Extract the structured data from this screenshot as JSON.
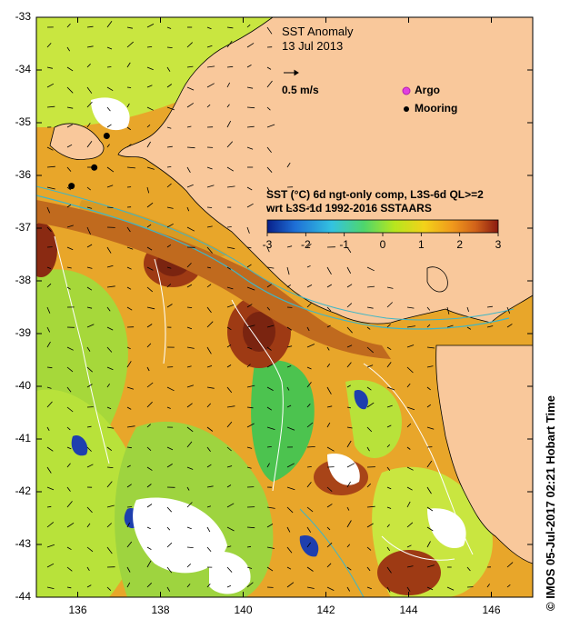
{
  "title": {
    "line1": "SST Anomaly",
    "line2": "13 Jul 2013"
  },
  "vector_legend": {
    "label": "0.5 m/s"
  },
  "symbols": {
    "argo": "Argo",
    "mooring": "Mooring"
  },
  "colorbar": {
    "line1": "SST (°C) 6d ngt-only comp, L3S-6d QL>=2",
    "line2": "wrt L3S-1d 1992-2016 SSTAARS",
    "ticks": [
      "-3",
      "-2",
      "-1",
      "0",
      "1",
      "2",
      "3"
    ],
    "colors": [
      "#08208a",
      "#1e6fd6",
      "#33c3e0",
      "#4fd66b",
      "#b6e61e",
      "#f2d21a",
      "#f09a1c",
      "#d2641a",
      "#8a1a10"
    ]
  },
  "credit": "© IMOS 05-Jul-2017 02:21 Hobart Time",
  "y_axis": {
    "ticks": [
      "-33",
      "-34",
      "-35",
      "-36",
      "-37",
      "-38",
      "-39",
      "-40",
      "-41",
      "-42",
      "-43",
      "-44"
    ]
  },
  "x_axis": {
    "ticks": [
      "136",
      "138",
      "140",
      "142",
      "144",
      "146"
    ]
  },
  "colors": {
    "land": "#f9c89b",
    "ocean_base": "#e8a62a",
    "warm": "#b8561a",
    "green": "#8dd24a",
    "argo": "#e040e0"
  },
  "moorings": [
    {
      "lon": 136.7,
      "lat": -35.25
    },
    {
      "lon": 136.4,
      "lat": -35.85
    },
    {
      "lon": 135.85,
      "lat": -36.2
    }
  ]
}
